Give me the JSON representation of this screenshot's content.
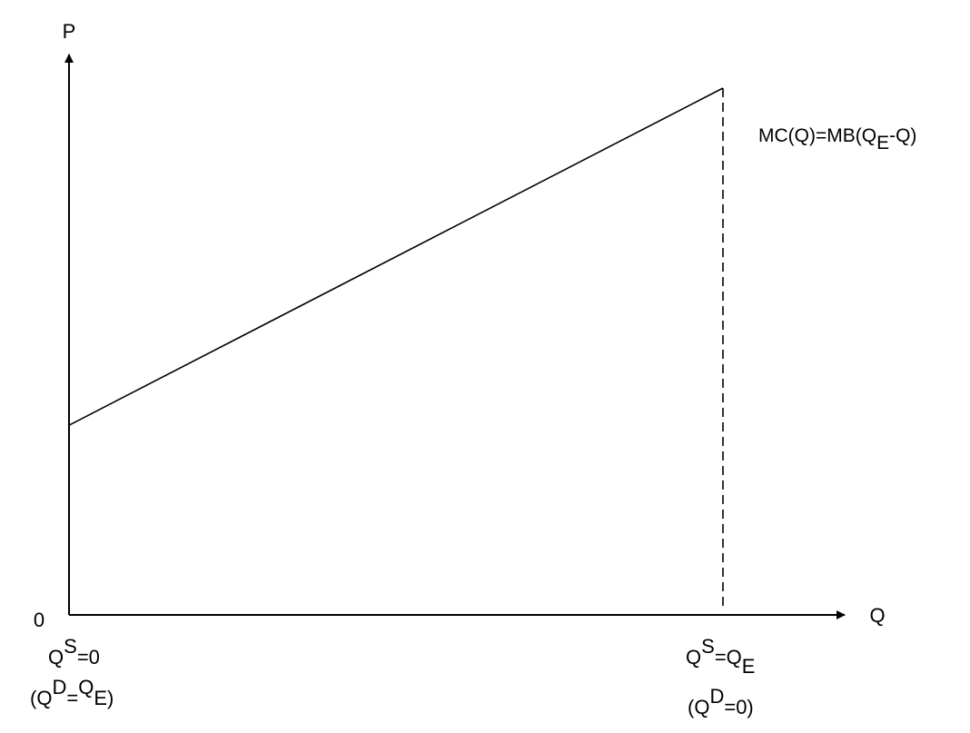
{
  "chart_data": {
    "type": "line",
    "title": "",
    "xlabel": "Q",
    "ylabel": "P",
    "origin_label": "0",
    "xlim": [
      0,
      1
    ],
    "ylim": [
      0,
      1
    ],
    "grid": false,
    "series": [
      {
        "name": "MC(Q)=MB(QE-Q)",
        "x": [
          0,
          0.9
        ],
        "y": [
          0.36,
          1.0
        ]
      }
    ],
    "curve_label": {
      "main": "MC(Q)=MB(Q",
      "sub": "E",
      "tail": "-Q)"
    },
    "reference_line": {
      "x": 0.9,
      "style": "dashed"
    },
    "x_annotations": {
      "left": {
        "line1": {
          "a": "Q",
          "sup": "S",
          "b": "=0"
        },
        "line2": {
          "a": "(Q",
          "sup": "D",
          "b": "=",
          "c": "Q",
          "sub": "E",
          "d": ")"
        }
      },
      "right": {
        "line1": {
          "a": "Q",
          "sup": "S",
          "b": "=Q",
          "sub": "E"
        },
        "line2": {
          "a": "(Q",
          "sup": "D",
          "b": "=0)"
        }
      }
    }
  }
}
